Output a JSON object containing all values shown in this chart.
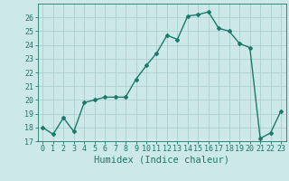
{
  "x": [
    0,
    1,
    2,
    3,
    4,
    5,
    6,
    7,
    8,
    9,
    10,
    11,
    12,
    13,
    14,
    15,
    16,
    17,
    18,
    19,
    20,
    21,
    22,
    23
  ],
  "y": [
    18.0,
    17.5,
    18.7,
    17.7,
    19.8,
    20.0,
    20.2,
    20.2,
    20.2,
    21.5,
    22.5,
    23.4,
    24.7,
    24.4,
    26.1,
    26.2,
    26.4,
    25.2,
    25.0,
    24.1,
    23.8,
    17.2,
    17.6,
    19.2
  ],
  "line_color": "#1a7a6a",
  "marker": "D",
  "marker_size": 2.0,
  "line_width": 1.0,
  "bg_color": "#cce8e8",
  "grid_color": "#add0d0",
  "xlabel": "Humidex (Indice chaleur)",
  "xlim": [
    -0.5,
    23.5
  ],
  "ylim": [
    17,
    27
  ],
  "yticks": [
    17,
    18,
    19,
    20,
    21,
    22,
    23,
    24,
    25,
    26
  ],
  "xticks": [
    0,
    1,
    2,
    3,
    4,
    5,
    6,
    7,
    8,
    9,
    10,
    11,
    12,
    13,
    14,
    15,
    16,
    17,
    18,
    19,
    20,
    21,
    22,
    23
  ],
  "tick_label_fontsize": 6.0,
  "xlabel_fontsize": 7.5
}
